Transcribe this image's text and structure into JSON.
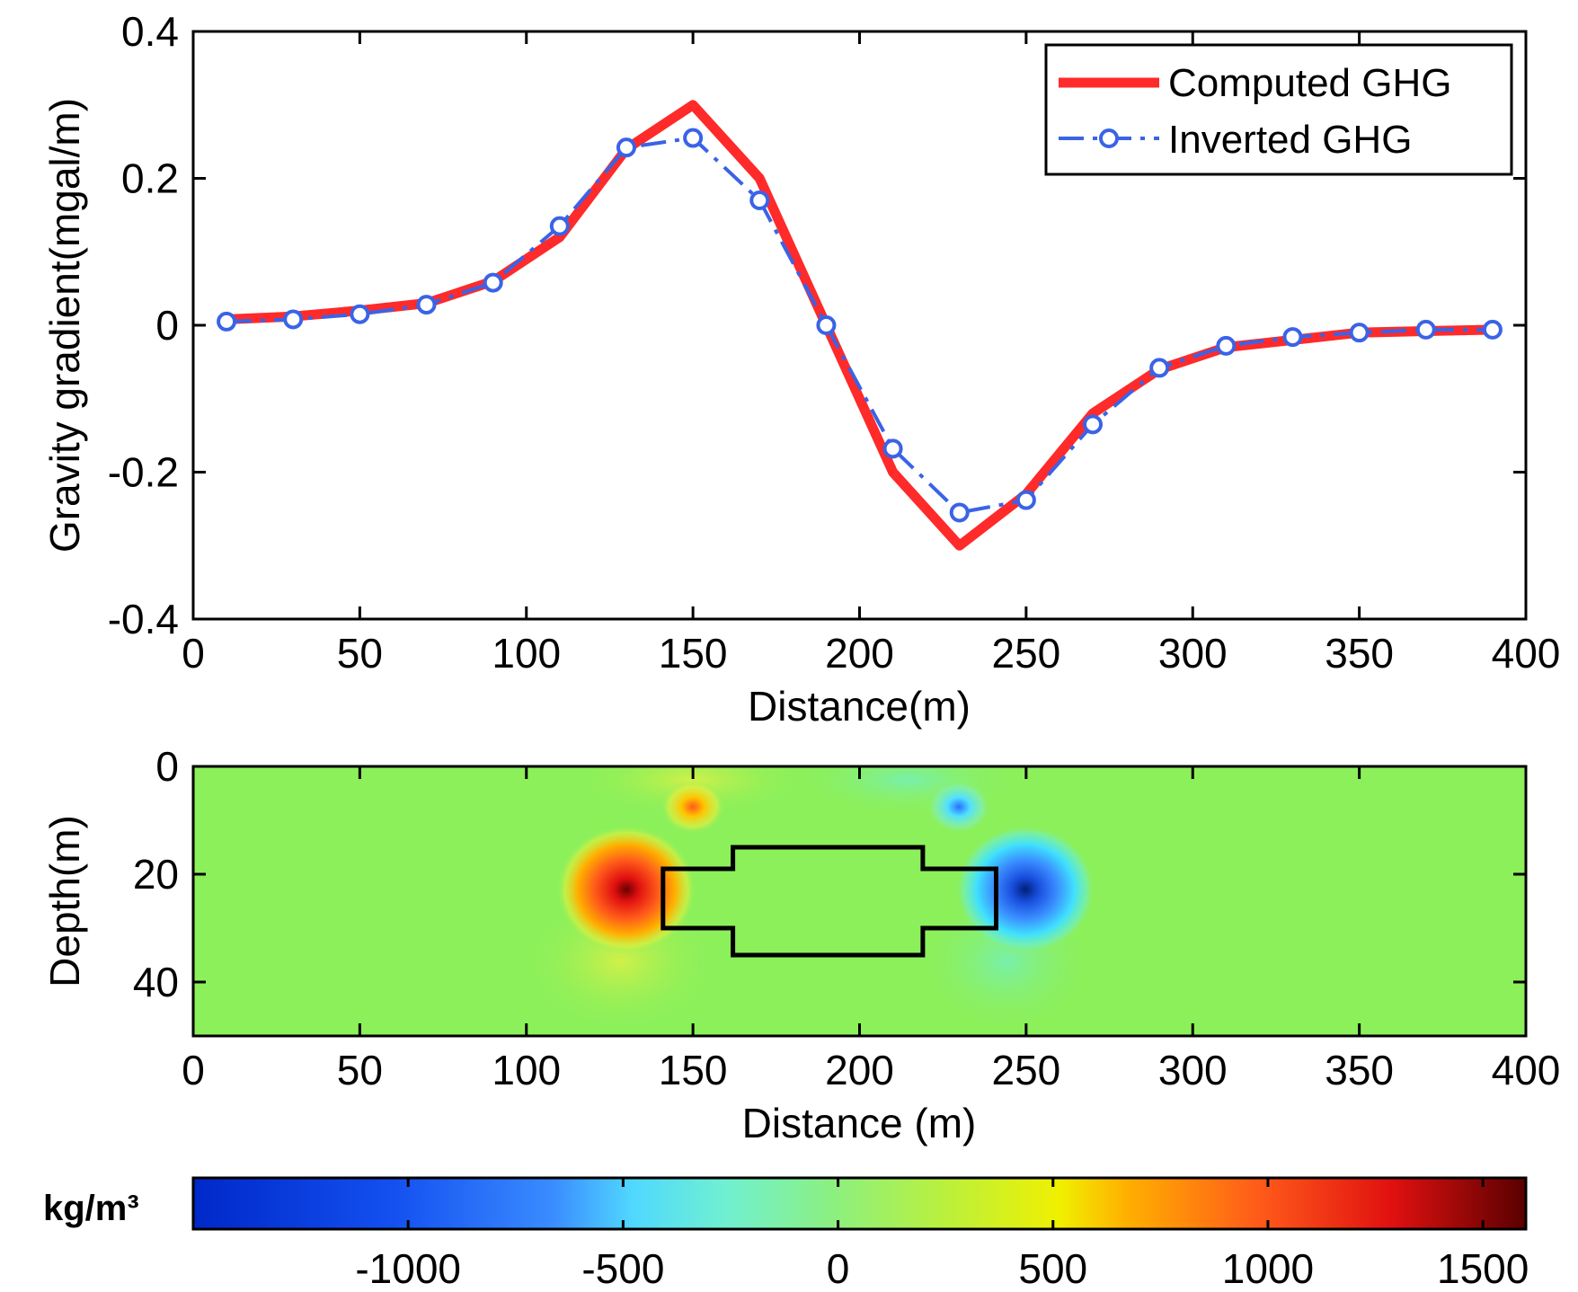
{
  "colors": {
    "computed": "#ff2a2a",
    "inverted": "#3a63e6",
    "background_field": "#8cf05a",
    "outline": "#000000"
  },
  "chart_data": [
    {
      "type": "line",
      "xlabel": "Distance(m)",
      "ylabel": "Gravity gradient(mgal/m)",
      "xlim": [
        0,
        400
      ],
      "ylim": [
        -0.4,
        0.4
      ],
      "xticks": [
        "0",
        "50",
        "100",
        "150",
        "200",
        "250",
        "300",
        "350",
        "400"
      ],
      "yticks": [
        "0.4",
        "0.2",
        "0",
        "-0.2",
        "-0.4"
      ],
      "legend_position": "top-right",
      "series": [
        {
          "name": "Computed GHG",
          "style": "solid",
          "x": [
            10,
            30,
            50,
            70,
            90,
            110,
            130,
            150,
            170,
            190,
            210,
            230,
            250,
            270,
            290,
            310,
            330,
            350,
            370,
            390
          ],
          "values": [
            0.008,
            0.012,
            0.02,
            0.03,
            0.06,
            0.12,
            0.24,
            0.3,
            0.2,
            0.0,
            -0.2,
            -0.3,
            -0.23,
            -0.12,
            -0.06,
            -0.03,
            -0.02,
            -0.01,
            -0.008,
            -0.006
          ]
        },
        {
          "name": "Inverted GHG",
          "style": "dash-dot-circle",
          "x": [
            10,
            30,
            50,
            70,
            90,
            110,
            130,
            150,
            170,
            190,
            210,
            230,
            250,
            270,
            290,
            310,
            330,
            350,
            370,
            390
          ],
          "values": [
            0.005,
            0.008,
            0.015,
            0.028,
            0.058,
            0.135,
            0.242,
            0.255,
            0.17,
            0.0,
            -0.168,
            -0.255,
            -0.238,
            -0.135,
            -0.058,
            -0.028,
            -0.016,
            -0.01,
            -0.006,
            -0.006
          ]
        }
      ]
    },
    {
      "type": "heatmap",
      "xlabel": "Distance (m)",
      "ylabel": "Depth(m)",
      "xlim": [
        0,
        400
      ],
      "ylim": [
        50,
        0
      ],
      "xticks": [
        "0",
        "50",
        "100",
        "150",
        "200",
        "250",
        "300",
        "350",
        "400"
      ],
      "yticks": [
        "0",
        "20",
        "40"
      ],
      "background_value": 0,
      "anomalies": [
        {
          "label": "positive density",
          "x": 130,
          "depth": 23,
          "value": 1500
        },
        {
          "label": "negative density",
          "x": 250,
          "depth": 23,
          "value": -1400
        },
        {
          "label": "shallow positive",
          "x": 150,
          "depth": 8,
          "value": 600
        },
        {
          "label": "shallow negative",
          "x": 230,
          "depth": 8,
          "value": -600
        }
      ],
      "true_body_outline": [
        [
          141,
          19
        ],
        [
          162,
          19
        ],
        [
          162,
          15
        ],
        [
          219,
          15
        ],
        [
          219,
          19
        ],
        [
          241,
          19
        ],
        [
          241,
          30
        ],
        [
          219,
          30
        ],
        [
          219,
          35
        ],
        [
          162,
          35
        ],
        [
          162,
          30
        ],
        [
          141,
          30
        ],
        [
          141,
          19
        ]
      ]
    },
    {
      "type": "colorbar",
      "label": "kg/m³",
      "range": [
        -1500,
        1600
      ],
      "ticks": [
        "-1000",
        "-500",
        "0",
        "500",
        "1000",
        "1500"
      ],
      "tick_values": [
        -1000,
        -500,
        0,
        500,
        1000,
        1500
      ],
      "colormap": "jet"
    }
  ]
}
